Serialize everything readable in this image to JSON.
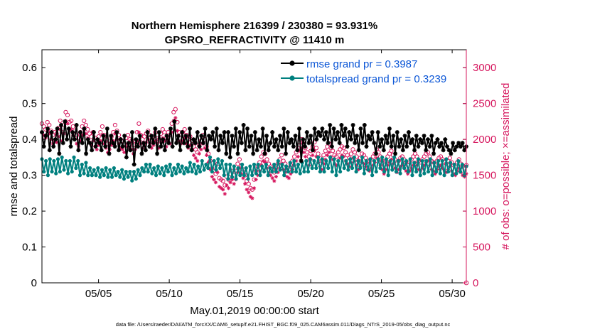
{
  "colors": {
    "rmse": "#000000",
    "spread": "#00807f",
    "obs": "#d6175e",
    "legend_text": "#0b56d6",
    "axis": "#000000"
  },
  "chart_data": {
    "type": "line",
    "title": "Northern Hemisphere 216399 / 230380 = 93.931%",
    "subtitle": "GPSRO_REFRACTIVITY @ 11410 m",
    "xlabel": "May.01,2019 00:00:00 start",
    "ylabel_left": "rmse and totalspread",
    "ylabel_right": "# of obs: o=possible; ×=assimilated",
    "footnote": "data file: /Users/raeder/DAI/ATM_forcXX/CAM6_setup/f.e21.FHIST_BGC.f09_025.CAM6assim.011/Diags_NTrS_2019-05/obs_diag_output.nc",
    "x_tick_labels": [
      "05/05",
      "05/10",
      "05/15",
      "05/20",
      "05/25",
      "05/30"
    ],
    "x_tick_days": [
      5,
      10,
      15,
      20,
      25,
      30
    ],
    "xlim": [
      1.0,
      31.0
    ],
    "ylim_left": [
      0,
      0.65
    ],
    "yticks_left": [
      "0",
      "0.1",
      "0.2",
      "0.3",
      "0.4",
      "0.5",
      "0.6"
    ],
    "ylim_right": [
      0,
      3250
    ],
    "yticks_right": [
      "0",
      "500",
      "1000",
      "1500",
      "2000",
      "2500",
      "3000"
    ],
    "legend_position": "top-right",
    "series": [
      {
        "name": "rmse",
        "legend": "rmse grand pr = 0.3987",
        "axis": "left",
        "values": [
          0.42,
          0.38,
          0.41,
          0.43,
          0.37,
          0.42,
          0.38,
          0.4,
          0.43,
          0.36,
          0.44,
          0.39,
          0.45,
          0.4,
          0.43,
          0.38,
          0.42,
          0.4,
          0.44,
          0.37,
          0.42,
          0.39,
          0.43,
          0.36,
          0.4,
          0.39,
          0.37,
          0.42,
          0.38,
          0.4,
          0.39,
          0.37,
          0.41,
          0.38,
          0.43,
          0.36,
          0.41,
          0.39,
          0.38,
          0.42,
          0.37,
          0.4,
          0.38,
          0.41,
          0.35,
          0.39,
          0.37,
          0.42,
          0.33,
          0.4,
          0.38,
          0.41,
          0.36,
          0.39,
          0.37,
          0.42,
          0.38,
          0.41,
          0.39,
          0.43,
          0.36,
          0.42,
          0.38,
          0.4,
          0.37,
          0.41,
          0.39,
          0.43,
          0.38,
          0.45,
          0.39,
          0.41,
          0.37,
          0.42,
          0.39,
          0.41,
          0.38,
          0.43,
          0.37,
          0.4,
          0.39,
          0.42,
          0.38,
          0.41,
          0.39,
          0.43,
          0.37,
          0.41,
          0.4,
          0.42,
          0.38,
          0.43,
          0.37,
          0.41,
          0.39,
          0.42,
          0.36,
          0.42,
          0.35,
          0.41,
          0.38,
          0.43,
          0.36,
          0.42,
          0.39,
          0.44,
          0.37,
          0.43,
          0.38,
          0.41,
          0.36,
          0.42,
          0.37,
          0.4,
          0.38,
          0.43,
          0.36,
          0.41,
          0.37,
          0.39,
          0.42,
          0.38,
          0.4,
          0.37,
          0.41,
          0.38,
          0.43,
          0.36,
          0.42,
          0.39,
          0.4,
          0.38,
          0.41,
          0.37,
          0.43,
          0.34,
          0.4,
          0.38,
          0.42,
          0.39,
          0.41,
          0.37,
          0.43,
          0.4,
          0.42,
          0.41,
          0.43,
          0.4,
          0.42,
          0.39,
          0.44,
          0.38,
          0.43,
          0.4,
          0.42,
          0.39,
          0.44,
          0.41,
          0.43,
          0.38,
          0.42,
          0.4,
          0.44,
          0.39,
          0.41,
          0.37,
          0.43,
          0.39,
          0.44,
          0.38,
          0.41,
          0.4,
          0.42,
          0.39,
          0.36,
          0.42,
          0.38,
          0.4,
          0.37,
          0.41,
          0.39,
          0.43,
          0.38,
          0.41,
          0.36,
          0.42,
          0.38,
          0.4,
          0.37,
          0.41,
          0.38,
          0.42,
          0.39,
          0.4,
          0.37,
          0.41,
          0.38,
          0.4,
          0.39,
          0.41,
          0.37,
          0.4,
          0.38,
          0.41,
          0.36,
          0.39,
          0.4,
          0.38,
          0.39,
          0.37,
          0.4,
          0.38,
          0.37,
          0.36,
          0.39,
          0.37,
          0.38,
          0.39,
          0.38,
          0.39,
          0.37,
          0.38
        ]
      },
      {
        "name": "totalspread",
        "legend": "totalspread grand pr = 0.3239",
        "axis": "left",
        "values": [
          0.345,
          0.31,
          0.34,
          0.3,
          0.345,
          0.31,
          0.34,
          0.305,
          0.345,
          0.31,
          0.35,
          0.315,
          0.34,
          0.305,
          0.34,
          0.31,
          0.35,
          0.32,
          0.34,
          0.3,
          0.33,
          0.305,
          0.335,
          0.3,
          0.32,
          0.3,
          0.315,
          0.3,
          0.32,
          0.295,
          0.315,
          0.3,
          0.32,
          0.295,
          0.315,
          0.295,
          0.32,
          0.3,
          0.31,
          0.295,
          0.315,
          0.29,
          0.31,
          0.295,
          0.31,
          0.285,
          0.31,
          0.29,
          0.315,
          0.3,
          0.32,
          0.31,
          0.33,
          0.31,
          0.33,
          0.305,
          0.32,
          0.3,
          0.325,
          0.305,
          0.32,
          0.3,
          0.325,
          0.31,
          0.33,
          0.3,
          0.32,
          0.305,
          0.33,
          0.31,
          0.325,
          0.305,
          0.32,
          0.31,
          0.335,
          0.31,
          0.33,
          0.305,
          0.325,
          0.31,
          0.34,
          0.315,
          0.33,
          0.32,
          0.35,
          0.31,
          0.34,
          0.315,
          0.345,
          0.32,
          0.34,
          0.3,
          0.33,
          0.29,
          0.33,
          0.295,
          0.325,
          0.29,
          0.32,
          0.3,
          0.33,
          0.3,
          0.32,
          0.29,
          0.325,
          0.3,
          0.33,
          0.305,
          0.33,
          0.3,
          0.325,
          0.31,
          0.33,
          0.3,
          0.32,
          0.31,
          0.33,
          0.31,
          0.34,
          0.315,
          0.33,
          0.3,
          0.325,
          0.31,
          0.335,
          0.31,
          0.34,
          0.31,
          0.33,
          0.305,
          0.335,
          0.31,
          0.34,
          0.31,
          0.345,
          0.32,
          0.34,
          0.32,
          0.35,
          0.31,
          0.345,
          0.31,
          0.34,
          0.32,
          0.35,
          0.31,
          0.345,
          0.3,
          0.34,
          0.31,
          0.35,
          0.32,
          0.34,
          0.315,
          0.345,
          0.32,
          0.35,
          0.31,
          0.34,
          0.32,
          0.35,
          0.305,
          0.34,
          0.315,
          0.345,
          0.3,
          0.34,
          0.31,
          0.345,
          0.32,
          0.35,
          0.31,
          0.345,
          0.3,
          0.34,
          0.315,
          0.35,
          0.31,
          0.34,
          0.305,
          0.345,
          0.32,
          0.34,
          0.31,
          0.345,
          0.3,
          0.335,
          0.31,
          0.345,
          0.3,
          0.34,
          0.305,
          0.34,
          0.31,
          0.345,
          0.3,
          0.335,
          0.31,
          0.34,
          0.305,
          0.34,
          0.3,
          0.345,
          0.31,
          0.335,
          0.3,
          0.33,
          0.305,
          0.34,
          0.31,
          0.33,
          0.3,
          0.325
        ]
      },
      {
        "name": "possible",
        "legend": "o=possible",
        "axis": "right",
        "marker": "circle",
        "values": [
          2220,
          2180,
          2140,
          2240,
          2200,
          2120,
          2060,
          2100,
          2080,
          2160,
          2260,
          2100,
          2200,
          2380,
          2340,
          2240,
          2260,
          2180,
          2120,
          2060,
          2020,
          2100,
          2180,
          2260,
          2200,
          2140,
          2080,
          2040,
          2100,
          2020,
          1980,
          2040,
          2100,
          2180,
          2060,
          2000,
          1940,
          1980,
          2040,
          2100,
          2200,
          2120,
          2060,
          2000,
          1980,
          1940,
          2020,
          2060,
          2000,
          1980,
          1920,
          1980,
          2100,
          2220,
          2060,
          2000,
          2040,
          2080,
          2120,
          2060,
          2000,
          2040,
          2100,
          2060,
          2000,
          2080,
          2140,
          2100,
          2020,
          2100,
          2060,
          2220,
          2380,
          2420,
          2240,
          2100,
          2060,
          2100,
          2140,
          2060,
          2000,
          2040,
          1980,
          1900,
          1860,
          1820,
          1920,
          1980,
          2060,
          2000,
          1900,
          1800,
          1700,
          1600,
          1560,
          1520,
          1660,
          1460,
          1440,
          1420,
          1360,
          1480,
          1440,
          1520,
          1560,
          1500,
          1560,
          1660,
          1720,
          1640,
          1580,
          1500,
          1420,
          1380,
          1320,
          1300,
          1440,
          1560,
          1620,
          1680,
          1760,
          1820,
          1800,
          1720,
          1660,
          1620,
          1580,
          1540,
          1600,
          1660,
          1720,
          1780,
          1700,
          1660,
          1600,
          1580,
          1640,
          1700,
          1760,
          1820,
          1880,
          1960,
          2000,
          1940,
          1880,
          1820,
          1760,
          1840,
          1900,
          1960,
          1880,
          1800,
          1740,
          1700,
          1780,
          1840,
          1900,
          1940,
          1880,
          1840,
          1780,
          1760,
          1820,
          1860,
          1900,
          1880,
          1820,
          1780,
          1740,
          1800,
          1860,
          1820,
          1760,
          1700,
          1740,
          1800,
          1780,
          1740,
          1700,
          1680,
          1720,
          1760,
          1800,
          1860,
          1820,
          1760,
          1700,
          1640,
          1700,
          1760,
          1800,
          1840,
          1780,
          1720,
          1660,
          1700,
          1740,
          1760,
          1720,
          1680,
          1640,
          1680,
          1720,
          1760,
          1800,
          1760,
          1700,
          1680,
          1720,
          1760,
          1800,
          1820,
          1760,
          1700,
          1680,
          1640,
          1700,
          1740,
          1760,
          1720,
          1680,
          1660,
          1700,
          1740,
          1680,
          1640,
          1620,
          1680,
          1720,
          1660,
          1620,
          1600,
          1640
        ]
      },
      {
        "name": "assimilated",
        "legend": "×=assimilated",
        "axis": "right",
        "marker": "star",
        "values": [
          2100,
          2060,
          2020,
          2120,
          2080,
          2000,
          1940,
          1980,
          1960,
          2040,
          2140,
          1980,
          2080,
          2260,
          2220,
          2120,
          2140,
          2060,
          2000,
          1940,
          1900,
          1980,
          2060,
          2140,
          2080,
          2020,
          1960,
          1920,
          1980,
          1900,
          1860,
          1920,
          1980,
          2060,
          1940,
          1880,
          1820,
          1860,
          1920,
          1980,
          2080,
          2000,
          1940,
          1880,
          1860,
          1820,
          1900,
          1940,
          1880,
          1860,
          1800,
          1860,
          1980,
          2100,
          1940,
          1880,
          1920,
          1960,
          2000,
          1940,
          1880,
          1920,
          1980,
          1940,
          1880,
          1960,
          2020,
          1980,
          1900,
          1980,
          1940,
          2100,
          2260,
          2300,
          2120,
          1980,
          1940,
          1980,
          2020,
          1940,
          1880,
          1920,
          1860,
          1780,
          1740,
          1700,
          1800,
          1860,
          1940,
          1880,
          1780,
          1680,
          1580,
          1480,
          1440,
          1400,
          1540,
          1340,
          1320,
          1300,
          1240,
          1360,
          1320,
          1400,
          1440,
          1380,
          1440,
          1540,
          1600,
          1520,
          1460,
          1380,
          1300,
          1260,
          1200,
          1180,
          1320,
          1440,
          1500,
          1560,
          1640,
          1700,
          1680,
          1600,
          1540,
          1500,
          1460,
          1420,
          1480,
          1540,
          1600,
          1660,
          1580,
          1540,
          1480,
          1460,
          1520,
          1580,
          1640,
          1700,
          1760,
          1840,
          1880,
          1820,
          1760,
          1700,
          1640,
          1720,
          1780,
          1840,
          1760,
          1680,
          1620,
          1580,
          1660,
          1720,
          1780,
          1820,
          1760,
          1720,
          1660,
          1640,
          1700,
          1740,
          1780,
          1760,
          1700,
          1660,
          1620,
          1680,
          1740,
          1700,
          1640,
          1580,
          1620,
          1680,
          1660,
          1620,
          1580,
          1560,
          1600,
          1640,
          1680,
          1740,
          1700,
          1640,
          1580,
          1520,
          1580,
          1640,
          1680,
          1720,
          1660,
          1600,
          1540,
          1580,
          1620,
          1640,
          1600,
          1560,
          1520,
          1560,
          1600,
          1640,
          1680,
          1640,
          1580,
          1560,
          1600,
          1640,
          1680,
          1700,
          1640,
          1580,
          1560,
          1520,
          1580,
          1620,
          1640,
          1600,
          1560,
          1540,
          1580,
          1620,
          1560,
          1520,
          1500,
          1560,
          1600,
          1540,
          1500,
          1480,
          1520
        ]
      }
    ]
  }
}
